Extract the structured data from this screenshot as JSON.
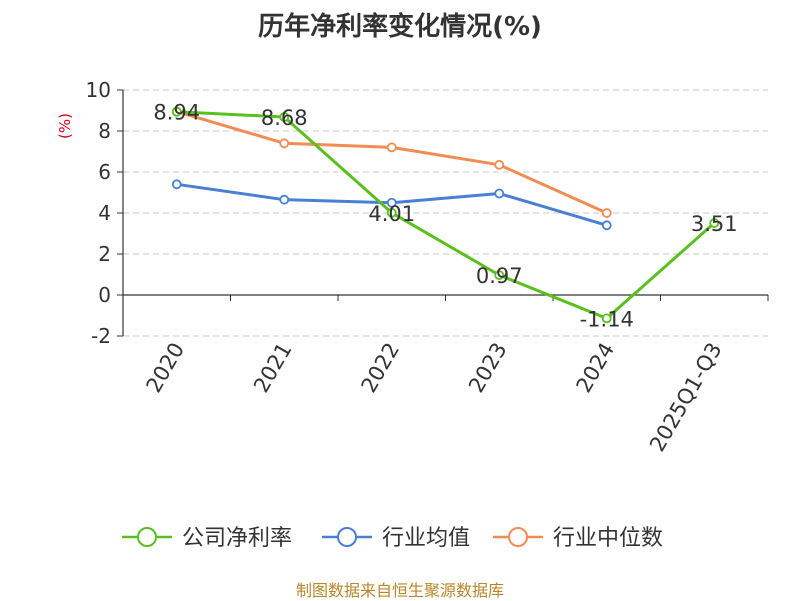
{
  "chart_data": {
    "type": "line",
    "title": "历年净利率变化情况(%)",
    "ylabel": "(%)",
    "categories": [
      "2020",
      "2021",
      "2022",
      "2023",
      "2024",
      "2025Q1-Q3"
    ],
    "ylim": [
      -2,
      10
    ],
    "yticks": [
      10,
      8,
      6,
      4,
      2,
      0,
      -2
    ],
    "grid": true,
    "legend_position": "bottom",
    "series": [
      {
        "name": "公司净利率",
        "color": "#5bbf1f",
        "values": [
          8.94,
          8.68,
          4.01,
          0.97,
          -1.14,
          3.51
        ],
        "data_labels": true
      },
      {
        "name": "行业均值",
        "color": "#4a7fd6",
        "values": [
          5.4,
          4.65,
          4.5,
          4.95,
          3.4,
          null
        ],
        "data_labels": false
      },
      {
        "name": "行业中位数",
        "color": "#f28c55",
        "values": [
          8.95,
          7.4,
          7.2,
          6.35,
          4.0,
          null
        ],
        "data_labels": false
      }
    ]
  },
  "footer": {
    "source": "制图数据来自恒生聚源数据库"
  }
}
